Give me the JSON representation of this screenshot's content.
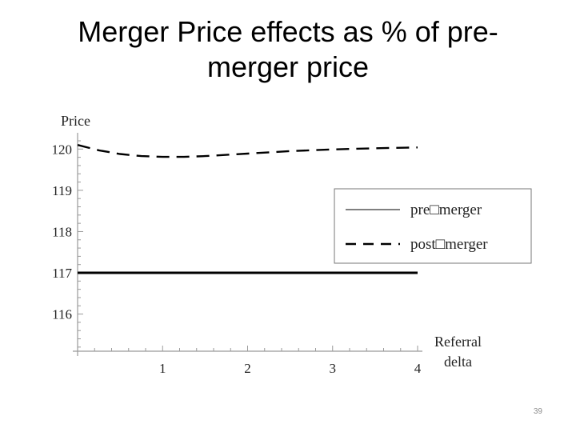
{
  "slide": {
    "title_line1": "Merger Price effects as % of pre-",
    "title_line2": "merger price",
    "page_number": "39"
  },
  "chart_data": {
    "type": "line",
    "title": "",
    "xlabel_line1": "Referral",
    "xlabel_line2": "delta",
    "ylabel": "Price",
    "xlim": [
      0,
      4
    ],
    "ylim": [
      115.1,
      120.2
    ],
    "x_ticks": [
      1,
      2,
      3,
      4
    ],
    "y_ticks": [
      116,
      117,
      118,
      119,
      120
    ],
    "grid": false,
    "legend_position": "right",
    "legend_labels": [
      "pre□merger",
      "post□merger"
    ],
    "series": [
      {
        "name": "pre□merger",
        "style": "solid",
        "x": [
          0,
          0.5,
          1,
          1.5,
          2,
          2.5,
          3,
          3.5,
          4
        ],
        "y": [
          117,
          117,
          117,
          117,
          117,
          117,
          117,
          117,
          117
        ]
      },
      {
        "name": "post□merger",
        "style": "dashed",
        "x": [
          0,
          0.25,
          0.5,
          0.75,
          1,
          1.25,
          1.5,
          2,
          2.5,
          3,
          3.5,
          4
        ],
        "y": [
          120.1,
          119.97,
          119.88,
          119.83,
          119.81,
          119.81,
          119.83,
          119.89,
          119.95,
          119.99,
          120.02,
          120.04
        ]
      }
    ],
    "colors": {
      "line": "#000000",
      "axis": "#9a9a9a",
      "legend_border": "#777777",
      "tick_label": "#222222"
    }
  }
}
